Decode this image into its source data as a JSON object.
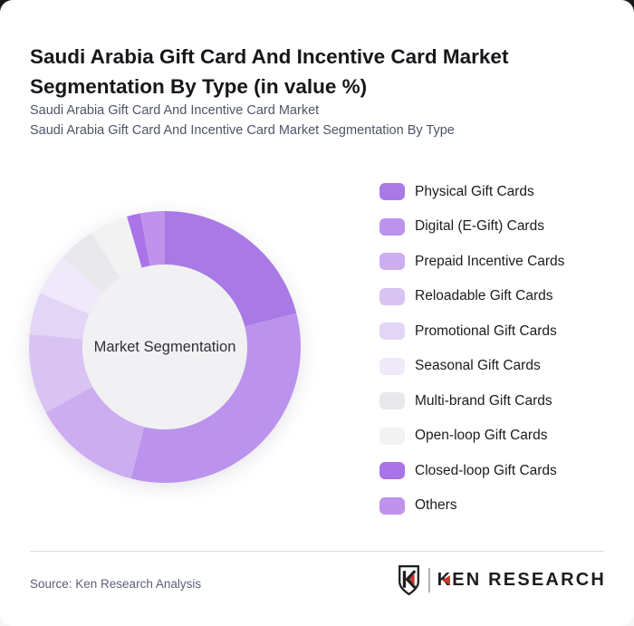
{
  "header": {
    "title": "Saudi Arabia Gift Card And Incentive Card Market Segmentation By Type (in value %)",
    "subtitle_line1": "Saudi Arabia Gift Card And Incentive Card Market",
    "subtitle_line2": "Saudi Arabia Gift Card And Incentive Card Market Segmentation By Type"
  },
  "chart_data": {
    "type": "pie",
    "variant": "donut",
    "title": "Saudi Arabia Gift Card And Incentive Card Market Segmentation By Type (in value %)",
    "center_label": "Market Segmentation",
    "legend_position": "right",
    "start_angle_deg": 0,
    "value_unit": "percent",
    "values_estimated_from_arcs": true,
    "hole_color": "#f1f1f3",
    "segments": [
      {
        "label": "Physical Gift Cards",
        "value": 21,
        "color": "#a97ae5"
      },
      {
        "label": "Digital (E-Gift) Cards",
        "value": 33,
        "color": "#bb93ec"
      },
      {
        "label": "Prepaid Incentive Cards",
        "value": 13,
        "color": "#ccadf0"
      },
      {
        "label": "Reloadable Gift Cards",
        "value": 9.5,
        "color": "#d8c3f3"
      },
      {
        "label": "Promotional Gift Cards",
        "value": 5,
        "color": "#e3d5f6"
      },
      {
        "label": "Seasonal Gift Cards",
        "value": 4.9,
        "color": "#efe9fa"
      },
      {
        "label": "Multi-brand Gift Cards",
        "value": 4.5,
        "color": "#e9e8ec"
      },
      {
        "label": "Open-loop Gift Cards",
        "value": 4.6,
        "color": "#f2f2f3"
      },
      {
        "label": "Closed-loop Gift Cards",
        "value": 1.6,
        "color": "#aa73e7"
      },
      {
        "label": "Others",
        "value": 2.9,
        "color": "#bf92ec"
      }
    ]
  },
  "footer": {
    "source": "Source: Ken Research Analysis",
    "logo": {
      "emblem_letter": "K",
      "brand_first": "K",
      "brand_rest": "EN RESEARCH",
      "separator": "|",
      "accent_color": "#c8382f",
      "text_color": "#1d1d1f"
    }
  }
}
